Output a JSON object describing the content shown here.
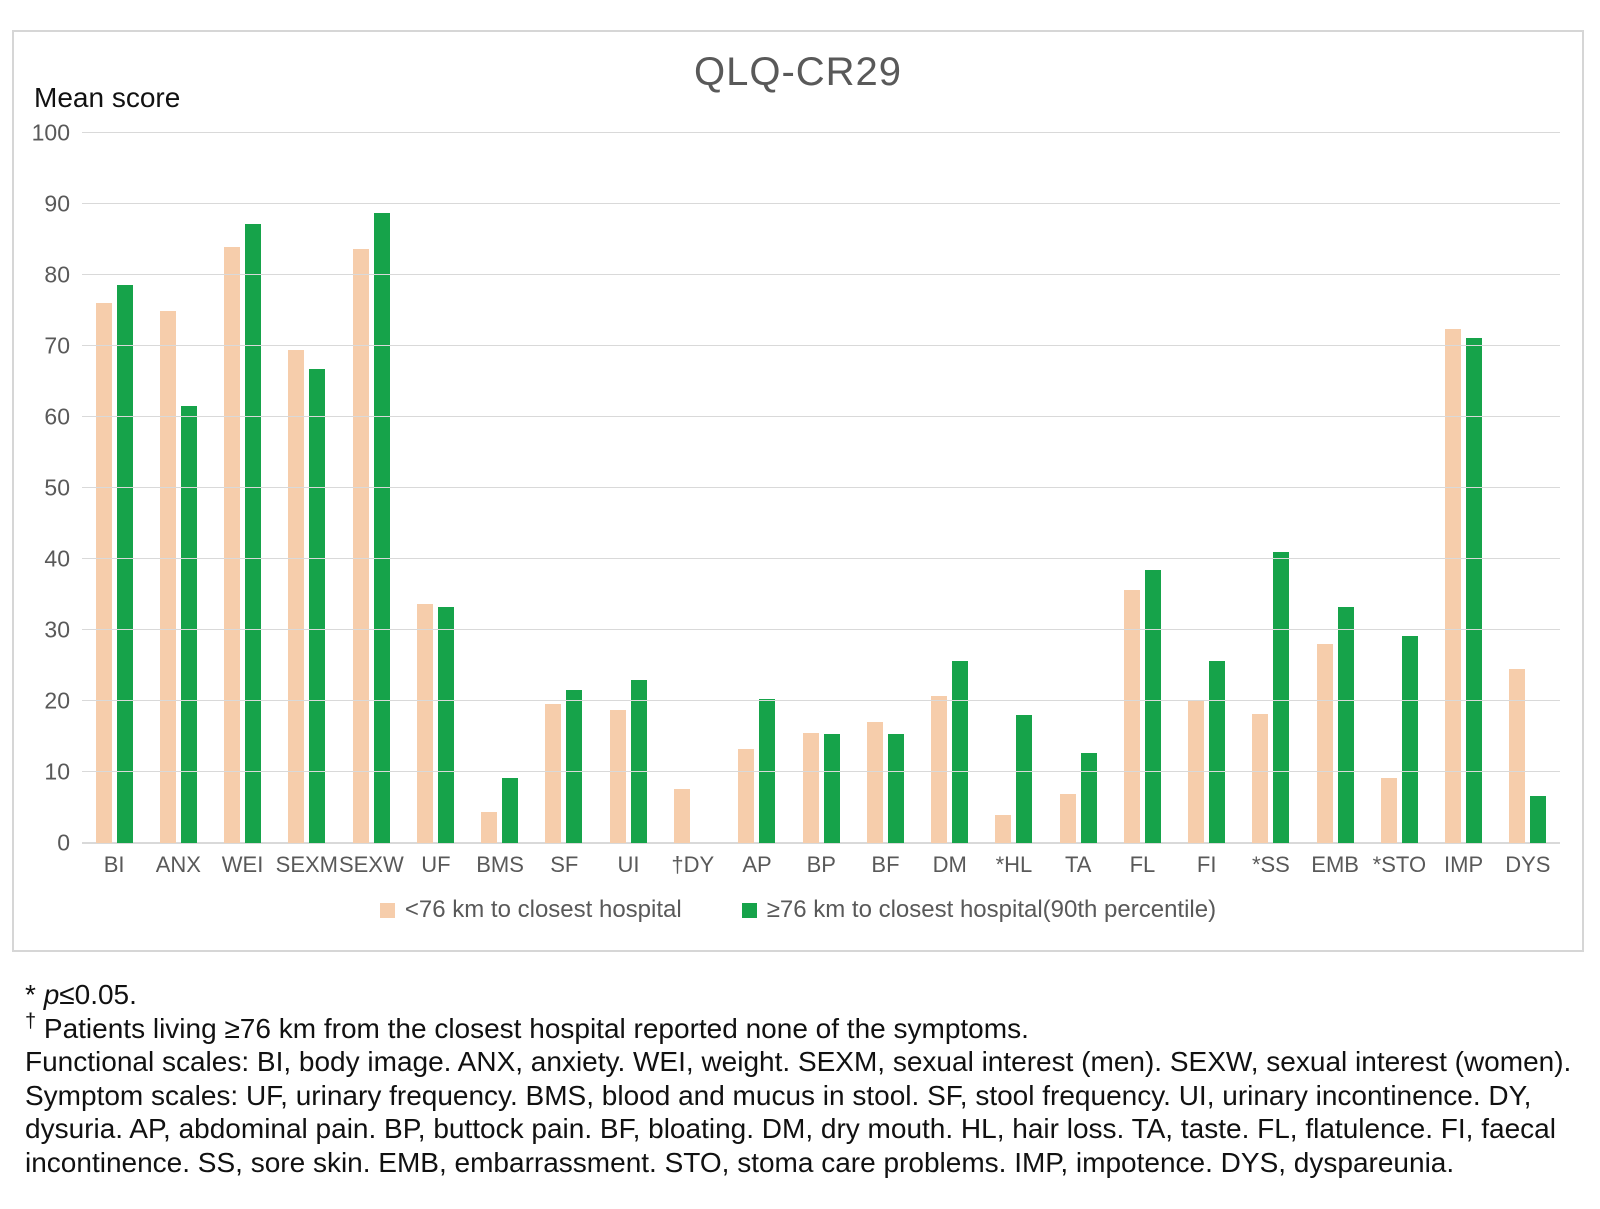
{
  "chart_data": {
    "type": "bar",
    "title": "QLQ-CR29",
    "ylabel": "Mean score",
    "xlabel": "",
    "ylim": [
      0,
      100
    ],
    "ytick_step": 10,
    "grid": true,
    "legend_position": "bottom",
    "categories": [
      "BI",
      "ANX",
      "WEI",
      "SEXM",
      "SEXW",
      "UF",
      "BMS",
      "SF",
      "UI",
      "†DY",
      "AP",
      "BP",
      "BF",
      "DM",
      "*HL",
      "TA",
      "FL",
      "FI",
      "*SS",
      "EMB",
      "*STO",
      "IMP",
      "DYS"
    ],
    "series": [
      {
        "name": "<76 km to closest hospital",
        "color": "#f6cdab",
        "values": [
          76,
          75,
          84,
          69.5,
          83.6,
          33.6,
          4.3,
          19.6,
          18.7,
          7.6,
          13.3,
          15.5,
          17,
          20.7,
          4,
          6.9,
          35.7,
          20,
          18.2,
          28,
          9.2,
          72.4,
          24.5
        ]
      },
      {
        "name": "≥76 km to closest hospital(90th percentile)",
        "color": "#16a34a",
        "values": [
          78.6,
          61.5,
          87.2,
          66.7,
          88.8,
          33.2,
          9.1,
          21.6,
          23,
          0,
          20.3,
          15.4,
          15.4,
          25.6,
          18,
          12.7,
          38.5,
          25.7,
          41,
          33.3,
          29.2,
          71.1,
          6.6
        ]
      }
    ],
    "colors": {
      "gridline": "#d9d9d9",
      "axis_text": "#595959",
      "title_text": "#595959",
      "border": "#d6d6d6"
    }
  },
  "footnotes": {
    "sig": {
      "prefix": "* ",
      "italic": "p",
      "rest": "≤0.05."
    },
    "dagger": {
      "sup": "†",
      "rest": " Patients living ≥76 km from the closest hospital reported none of the symptoms."
    },
    "functional": "Functional scales: BI, body image. ANX, anxiety. WEI, weight. SEXM, sexual interest (men). SEXW, sexual interest (women).",
    "symptom": "Symptom scales: UF, urinary frequency. BMS, blood and mucus in stool. SF, stool frequency. UI, urinary incontinence. DY, dysuria. AP, abdominal pain. BP, buttock pain. BF, bloating. DM, dry mouth. HL, hair loss. TA, taste. FL, flatulence. FI, faecal incontinence. SS, sore skin. EMB, embarrassment. STO, stoma care problems. IMP, impotence. DYS, dyspareunia."
  }
}
